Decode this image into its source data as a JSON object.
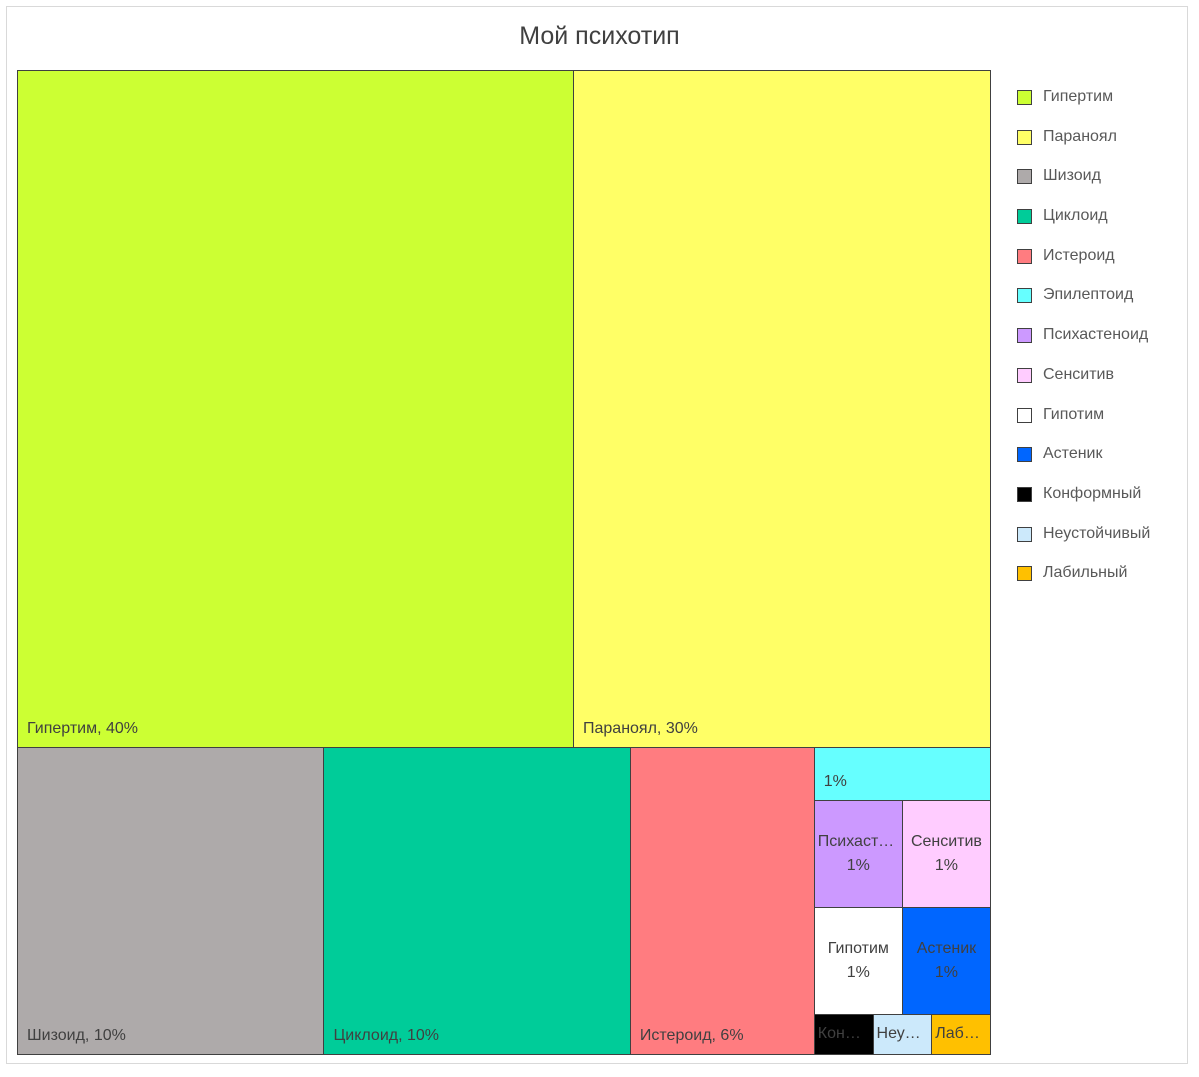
{
  "chart_data": {
    "type": "treemap",
    "title": "Мой психотип",
    "categories": [
      "Гипертим",
      "Параноял",
      "Шизоид",
      "Циклоид",
      "Истероид",
      "Эпилептоид",
      "Психастеноид",
      "Сенситив",
      "Гипотим",
      "Астеник",
      "Конформный",
      "Неустойчивый",
      "Лабильный"
    ],
    "values": [
      40,
      30,
      10,
      10,
      6,
      1,
      1,
      1,
      1,
      1,
      0.25,
      0.25,
      0.25
    ],
    "value_labels": [
      "Гипертим, 40%",
      "Параноял, 30%",
      "Шизоид, 10%",
      "Циклоид, 10%",
      "Истероид, 6%",
      "1%",
      "1%",
      "1%",
      "1%",
      "1%",
      null,
      null,
      null
    ],
    "colors": [
      "#ccff33",
      "#ffff66",
      "#aeaaaa",
      "#00cc99",
      "#ff7c80",
      "#66ffff",
      "#cc99ff",
      "#ffccff",
      "#ffffff",
      "#0066ff",
      "#000000",
      "#cce9fb",
      "#ffc000"
    ],
    "legend": "right"
  }
}
